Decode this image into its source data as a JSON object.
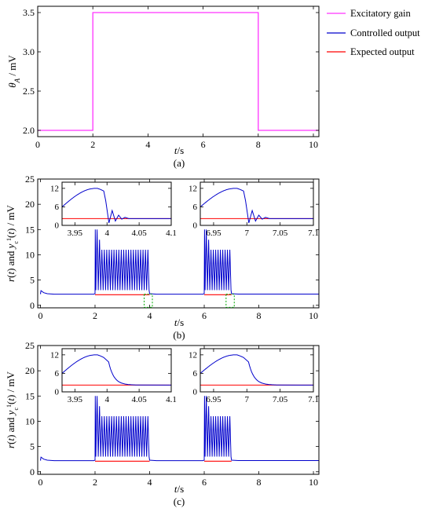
{
  "legend": {
    "items": [
      {
        "label": "Excitatory gain",
        "color": "#ff33ff"
      },
      {
        "label": "Controlled output",
        "color": "#0000cc"
      },
      {
        "label": "Expected output",
        "color": "#ff0000"
      }
    ]
  },
  "panels": [
    {
      "caption": "(a)",
      "xlabel": "t/s",
      "ylabel": "θA / mV"
    },
    {
      "caption": "(b)",
      "xlabel": "t/s",
      "ylabel": "r(t) and yc1(t) / mV"
    },
    {
      "caption": "(c)",
      "xlabel": "t/s",
      "ylabel": "r(t) and yc1(t) / mV"
    }
  ],
  "chart_data": [
    {
      "type": "line",
      "title": "",
      "caption": "(a)",
      "xlabel": "t/s",
      "ylabel": "θA / mV",
      "xlim": [
        0,
        10.2
      ],
      "ylim": [
        1.92,
        3.58
      ],
      "xticks": [
        0,
        2,
        4,
        6,
        8,
        10
      ],
      "yticks": [
        2.0,
        2.5,
        3.0,
        3.5
      ],
      "legend_position": "right",
      "grid": false,
      "series": [
        {
          "name": "Excitatory gain",
          "color": "#ff33ff",
          "x": [
            0,
            2,
            2,
            8,
            8,
            10.2
          ],
          "y": [
            2.0,
            2.0,
            3.5,
            3.5,
            2.0,
            2.0
          ]
        }
      ]
    },
    {
      "type": "line",
      "caption": "(b)",
      "xlabel": "t/s",
      "ylabel": "r(t) and yc1(t) / mV",
      "xlim": [
        -0.1,
        10.2
      ],
      "ylim": [
        -0.5,
        25
      ],
      "xticks": [
        0,
        2,
        4,
        6,
        8,
        10
      ],
      "yticks": [
        0,
        5,
        10,
        15,
        20,
        25
      ],
      "grid": false,
      "baseline": 2.3,
      "bursts": [
        {
          "start": 2,
          "end": 4,
          "peak": 15,
          "osc_high": 11,
          "osc_low": 3,
          "cycles": 22
        },
        {
          "start": 6,
          "end": 7,
          "peak": 15,
          "osc_high": 11,
          "osc_low": 3,
          "cycles": 11
        }
      ],
      "expected_output": {
        "name": "Expected output",
        "color": "#ff0000",
        "segments": [
          [
            2,
            4,
            2.1
          ],
          [
            6,
            7,
            2.1
          ]
        ]
      },
      "zoom_boxes": [
        [
          3.8,
          4.1
        ],
        [
          6.8,
          7.1
        ]
      ],
      "insets": [
        {
          "xlim": [
            3.93,
            4.1
          ],
          "ylim": [
            0,
            14
          ],
          "xticks": [
            3.95,
            4,
            4.05,
            4.1
          ],
          "xtick_labels": [
            "3.95",
            "4",
            "4.05",
            "4.1"
          ],
          "yticks": [
            0,
            6,
            12
          ],
          "edge": 4.0,
          "ringing": true
        },
        {
          "xlim": [
            6.93,
            7.1
          ],
          "ylim": [
            0,
            14
          ],
          "xticks": [
            6.95,
            7,
            7.05,
            7.1
          ],
          "xtick_labels": [
            "6.95",
            "7",
            "7.05",
            "7.1"
          ],
          "yticks": [
            0,
            6,
            12
          ],
          "edge": 7.0,
          "ringing": true
        }
      ]
    },
    {
      "type": "line",
      "caption": "(c)",
      "xlabel": "t/s",
      "ylabel": "r(t) and yc1(t) / mV",
      "xlim": [
        -0.1,
        10.2
      ],
      "ylim": [
        -0.5,
        25
      ],
      "xticks": [
        0,
        2,
        4,
        6,
        8,
        10
      ],
      "yticks": [
        0,
        5,
        10,
        15,
        20,
        25
      ],
      "grid": false,
      "baseline": 2.3,
      "bursts": [
        {
          "start": 2,
          "end": 4,
          "peak": 15,
          "osc_high": 11,
          "osc_low": 3,
          "cycles": 22
        },
        {
          "start": 6,
          "end": 7,
          "peak": 15,
          "osc_high": 11,
          "osc_low": 3,
          "cycles": 11
        }
      ],
      "expected_output": {
        "name": "Expected output",
        "color": "#ff0000",
        "segments": [
          [
            2,
            4,
            2.1
          ],
          [
            6,
            7,
            2.1
          ]
        ]
      },
      "insets": [
        {
          "xlim": [
            3.93,
            4.1
          ],
          "ylim": [
            0,
            14
          ],
          "xticks": [
            3.95,
            4,
            4.05,
            4.1
          ],
          "xtick_labels": [
            "3.95",
            "4",
            "4.05",
            "4.1"
          ],
          "yticks": [
            0,
            6,
            12
          ],
          "edge": 4.0,
          "ringing": false
        },
        {
          "xlim": [
            6.93,
            7.1
          ],
          "ylim": [
            0,
            14
          ],
          "xticks": [
            6.95,
            7,
            7.05,
            7.1
          ],
          "xtick_labels": [
            "6.95",
            "7",
            "7.05",
            "7.1"
          ],
          "yticks": [
            0,
            6,
            12
          ],
          "edge": 7.0,
          "ringing": false
        }
      ]
    }
  ]
}
